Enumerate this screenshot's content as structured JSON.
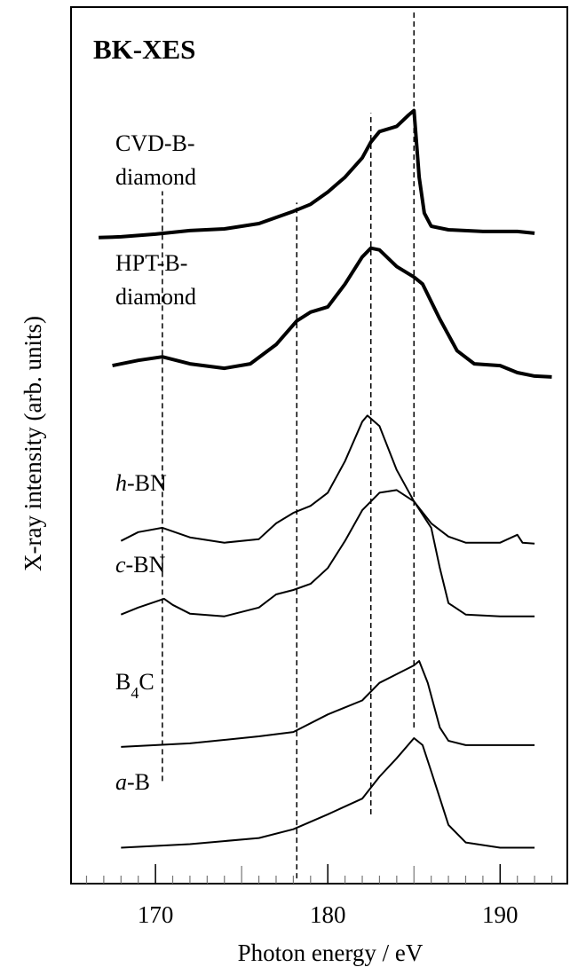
{
  "chart_data": {
    "type": "line",
    "title": "BK-XES",
    "xlabel": "Photon energy / eV",
    "ylabel": "X-ray intensity (arb. units)",
    "xlim": [
      165.1,
      193.9
    ],
    "ylim": [
      0,
      100
    ],
    "xticks": [
      170,
      180,
      190
    ],
    "xminorticks": [
      166,
      167,
      168,
      169,
      170,
      171,
      172,
      173,
      174,
      175,
      176,
      177,
      178,
      179,
      180,
      181,
      182,
      183,
      184,
      185,
      186,
      187,
      188,
      189,
      190,
      191,
      192,
      193
    ],
    "reference_lines": [
      {
        "x": 170.4,
        "y": [
          11.7,
          79.0
        ]
      },
      {
        "x": 178.2,
        "y": [
          0.6,
          77.7
        ]
      },
      {
        "x": 182.5,
        "y": [
          7.9,
          87.9
        ]
      },
      {
        "x": 185.0,
        "y": [
          17.8,
          99.6
        ]
      }
    ],
    "series": [
      {
        "name": [
          "CVD-B-",
          "diamond"
        ],
        "color": "#000000",
        "linewidth": 4,
        "x": [
          166.7,
          168,
          170,
          172,
          174,
          176,
          178,
          179,
          180,
          181,
          182,
          182.5,
          183,
          184,
          184.7,
          185.0,
          185.3,
          185.6,
          186,
          187,
          189,
          191,
          192
        ],
        "values": [
          73.7,
          73.8,
          74.1,
          74.5,
          74.7,
          75.3,
          76.7,
          77.5,
          78.9,
          80.6,
          82.8,
          84.6,
          85.8,
          86.4,
          87.7,
          88.2,
          80.6,
          76.5,
          75.0,
          74.6,
          74.4,
          74.4,
          74.2
        ]
      },
      {
        "name": [
          "HPT-B-",
          "diamond"
        ],
        "color": "#000000",
        "linewidth": 4,
        "x": [
          167.5,
          169,
          170.4,
          172,
          174,
          175.5,
          177,
          178.2,
          179,
          180,
          181,
          182,
          182.5,
          183,
          184,
          185,
          185.5,
          186.5,
          187.5,
          188.5,
          190,
          191,
          192,
          193
        ],
        "values": [
          59.1,
          59.7,
          60.1,
          59.3,
          58.8,
          59.3,
          61.5,
          64.2,
          65.2,
          65.8,
          68.4,
          71.5,
          72.5,
          72.3,
          70.4,
          69.2,
          68.4,
          64.4,
          60.8,
          59.3,
          59.1,
          58.3,
          57.9,
          57.8
        ]
      },
      {
        "name": "h-BN",
        "color": "#000000",
        "linewidth": 2,
        "x": [
          168,
          169,
          170.4,
          172,
          174,
          176,
          177,
          178,
          179,
          180,
          181,
          182,
          182.3,
          183,
          184,
          185,
          186,
          187,
          188,
          190,
          191,
          191.3,
          192
        ],
        "values": [
          39.1,
          40.1,
          40.6,
          39.5,
          38.9,
          39.3,
          41.1,
          42.3,
          43.1,
          44.6,
          48.2,
          52.7,
          53.4,
          52.2,
          47.2,
          43.6,
          41.1,
          39.6,
          38.9,
          38.9,
          39.8,
          38.9,
          38.8
        ]
      },
      {
        "name": "c-BN",
        "color": "#000000",
        "linewidth": 2,
        "x": [
          168,
          169,
          170.5,
          171,
          172,
          174,
          176,
          177,
          178,
          179,
          180,
          181,
          182,
          183,
          184,
          185,
          186,
          186.5,
          187,
          188,
          190,
          192
        ],
        "values": [
          30.7,
          31.5,
          32.5,
          31.8,
          30.8,
          30.5,
          31.5,
          33.0,
          33.5,
          34.2,
          36.0,
          39.1,
          42.6,
          44.6,
          44.9,
          43.6,
          40.6,
          36.0,
          32.0,
          30.7,
          30.5,
          30.5
        ]
      },
      {
        "name": "B4C",
        "color": "#000000",
        "linewidth": 2,
        "x": [
          168,
          172,
          176,
          178,
          180,
          182,
          183,
          184,
          185,
          185.3,
          185.8,
          186.5,
          187,
          188,
          190,
          192
        ],
        "values": [
          15.6,
          16.0,
          16.8,
          17.3,
          19.3,
          20.9,
          22.9,
          23.9,
          24.9,
          25.4,
          22.9,
          17.8,
          16.3,
          15.8,
          15.8,
          15.8
        ]
      },
      {
        "name": "a-B",
        "color": "#000000",
        "linewidth": 2,
        "x": [
          168,
          172,
          176,
          178,
          180,
          182,
          183,
          184,
          185,
          185.5,
          186,
          187,
          188,
          190,
          192
        ],
        "values": [
          4.1,
          4.5,
          5.2,
          6.2,
          7.9,
          9.7,
          12.2,
          14.3,
          16.6,
          15.8,
          12.8,
          6.7,
          4.7,
          4.1,
          4.1
        ]
      }
    ]
  }
}
